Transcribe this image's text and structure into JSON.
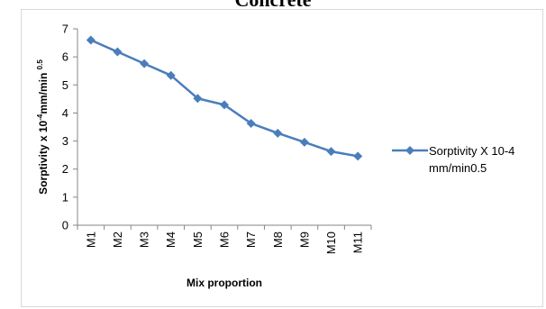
{
  "chart_data": {
    "type": "line",
    "title": "Concrete",
    "xlabel": "Mix  proportion",
    "ylabel": "Sorptivity  x 10⁻⁴mm/min ⁰·⁵",
    "ylabel_parts": {
      "base": "Sorptivity  x 10",
      "exp1": "-4",
      "mid": "mm/min ",
      "exp2": "0.5"
    },
    "categories": [
      "M1",
      "M2",
      "M3",
      "M4",
      "M5",
      "M6",
      "M7",
      "M8",
      "M9",
      "M10",
      "M11"
    ],
    "ylim": [
      0,
      7
    ],
    "yticks": [
      0,
      1,
      2,
      3,
      4,
      5,
      6,
      7
    ],
    "grid": false,
    "legend_position": "right",
    "series": [
      {
        "name": "Sorptivity  X 10-4 mm/min0.5",
        "legend_lines": [
          "Sorptivity  X 10-4",
          "mm/min0.5"
        ],
        "values": [
          6.6,
          6.18,
          5.76,
          5.34,
          4.52,
          4.29,
          3.63,
          3.28,
          2.96,
          2.63,
          2.46
        ],
        "color": "#4a7ebb"
      }
    ]
  }
}
